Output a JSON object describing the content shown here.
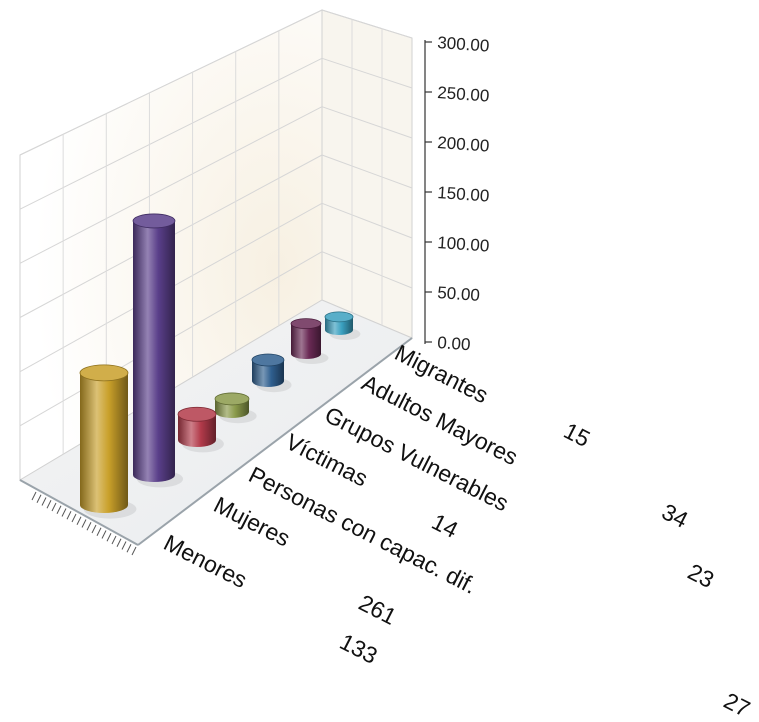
{
  "chart_data": {
    "type": "bar",
    "categories": [
      "Menores",
      "Mujeres",
      "Personas con capac. dif.",
      "Víctimas",
      "Grupos Vulnerables",
      "Adultos Mayores",
      "Migrantes"
    ],
    "values": [
      133,
      261,
      27,
      14,
      23,
      34,
      15
    ],
    "value_labels": [
      "133",
      "261",
      "27",
      "14",
      "23",
      "34",
      "15"
    ],
    "ylim": [
      0,
      300
    ],
    "yticks": [
      "0.00",
      "50.00",
      "100.00",
      "150.00",
      "200.00",
      "250.00",
      "300.00"
    ],
    "colors": [
      "#c9a02a",
      "#5a3f8a",
      "#b23a4a",
      "#8a9a4a",
      "#2f5f8f",
      "#6a2a55",
      "#3aa0c0"
    ],
    "grid": true
  }
}
